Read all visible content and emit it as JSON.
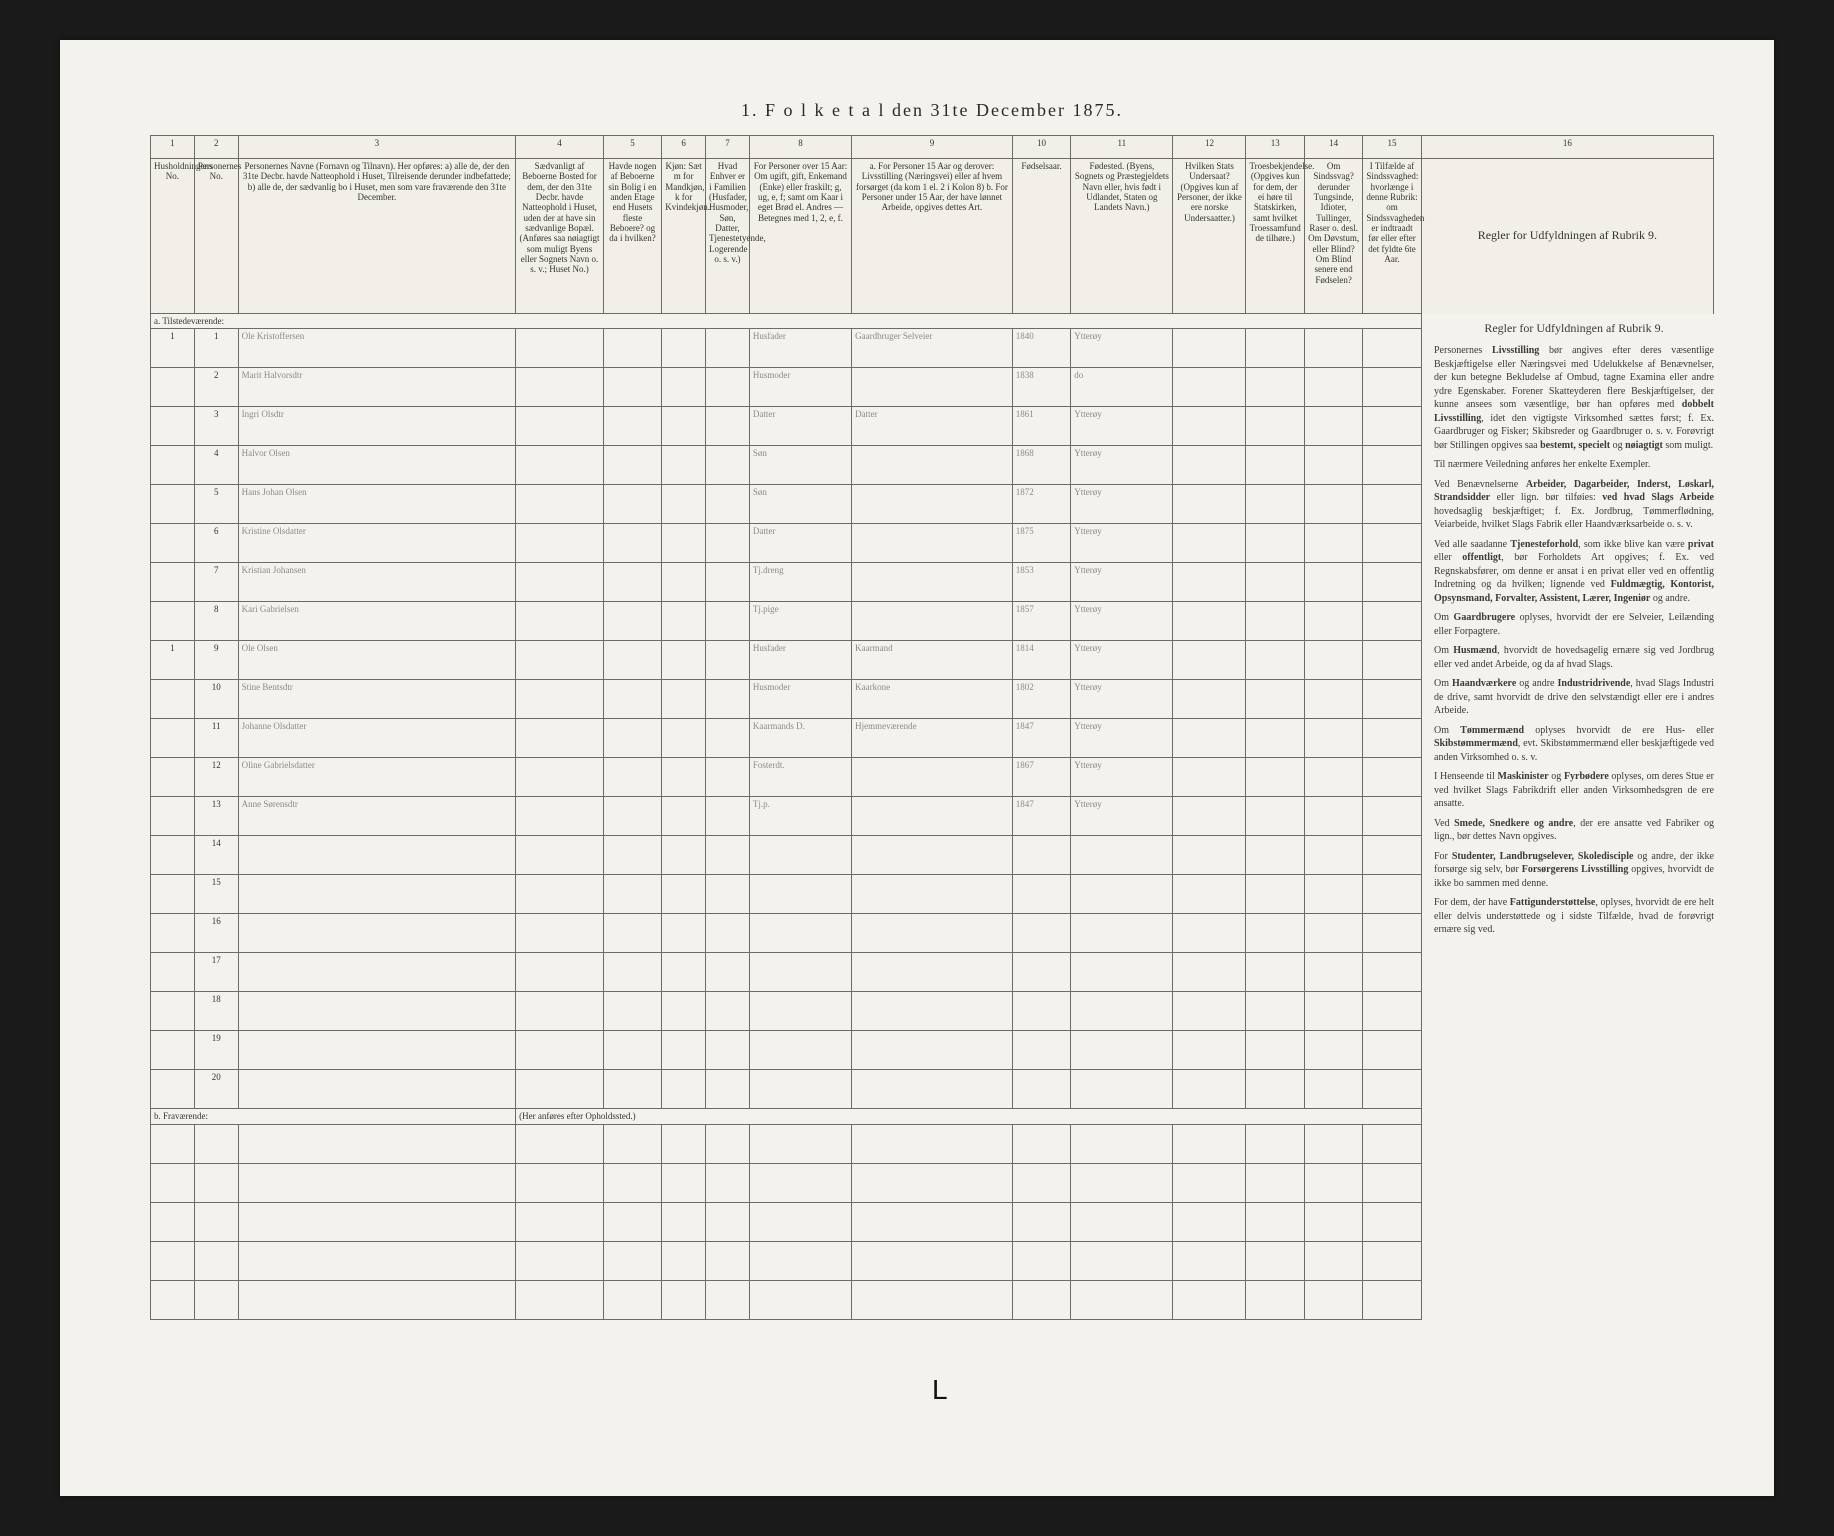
{
  "title": "1.  F o l k e t a l   den 31te December 1875.",
  "columns_numbers": [
    "1",
    "2",
    "3",
    "4",
    "5",
    "6",
    "7",
    "8",
    "9",
    "10",
    "11",
    "12",
    "13",
    "14",
    "15",
    "16"
  ],
  "headers": [
    "Husholdningens No.",
    "Personernes No.",
    "Personernes Navne (Fornavn og Tilnavn). Her opføres: a) alle de, der den 31te Decbr. havde Natteophold i Huset, Tilreisende derunder indbefattede; b) alle de, der sædvanlig bo i Huset, men som vare fraværende den 31te December.",
    "Sædvanligt af Beboerne Bosted for dem, der den 31te Decbr. havde Natteophold i Huset, uden der at have sin sædvanlige Bopæl. (Anføres saa nøiagtigt som muligt Byens eller Sognets Navn o. s. v.; Huset No.)",
    "Havde nogen af Beboerne sin Bolig i en anden Etage end Husets fleste Beboere? og da i hvilken?",
    "Kjøn: Sæt m for Mandkjøn, k for Kvindekjøn.",
    "Hvad Enhver er i Familien (Husfader, Husmoder, Søn, Datter, Tjenestetyende, Logerende o. s. v.)",
    "For Personer over 15 Aar: Om ugift, gift, Enkemand (Enke) eller fraskilt; g, ug, e, f; samt om Kaar i eget Brød el. Andres — Betegnes med 1, 2, e, f.",
    "a. For Personer 15 Aar og derover: Livsstilling (Næringsvei) eller af hvem forsørget (da kom 1 el. 2 i Kolon 8) b. For Personer under 15 Aar, der have lønnet Arbeide, opgives dettes Art.",
    "Fødselsaar.",
    "Fødested. (Byens, Sognets og Præstegjeldets Navn eller, hvis født i Udlandet, Staten og Landets Navn.)",
    "Hvilken Stats Undersaat? (Opgives kun af Personer, der ikke ere norske Undersaatter.)",
    "Troesbekjendelse. (Opgives kun for dem, der ei høre til Statskirken, samt hvilket Troessamfund de tilhøre.)",
    "Om Sindssvag? derunder Tungsinde, Idioter, Tullinger, Raser o. desl. Om Døvstum, eller Blind? Om Blind senere end Fødselen?",
    "I Tilfælde af Sindssvaghed: hvorlænge i denne Rubrik: om Sindssvagheden er indtraadt før eller efter det fyldte 6te Aar.",
    "Regler for Udfyldningen af Rubrik 9."
  ],
  "section_a": "a. Tilstedeværende:",
  "section_b": "b. Fraværende:",
  "section_b_sub": "(Her anføres efter Opholdssted.)",
  "rows": [
    {
      "n": "1",
      "hh": "1",
      "name": "Ole Kristoffersen",
      "col7": "Husfader",
      "col8": "g",
      "col9": "Gaardbruger Selveier",
      "year": "1840",
      "place": "Ytterøy"
    },
    {
      "n": "2",
      "hh": "",
      "name": "Marit Halvorsdtr",
      "col7": "Husmoder",
      "col8": "g",
      "col9": "",
      "year": "1838",
      "place": "do"
    },
    {
      "n": "3",
      "hh": "",
      "name": "Ingri Olsdtr",
      "col7": "Datter",
      "col8": "",
      "col9": "Datter",
      "year": "1861",
      "place": "Ytterøy"
    },
    {
      "n": "4",
      "hh": "",
      "name": "Halvor Olsen",
      "col7": "Søn",
      "col8": "",
      "col9": "",
      "year": "1868",
      "place": "Ytterøy"
    },
    {
      "n": "5",
      "hh": "",
      "name": "Hans Johan Olsen",
      "col7": "Søn",
      "col8": "",
      "col9": "",
      "year": "1872",
      "place": "Ytterøy"
    },
    {
      "n": "6",
      "hh": "",
      "name": "Kristine Olsdatter",
      "col7": "Datter",
      "col8": "",
      "col9": "",
      "year": "1875",
      "place": "Ytterøy"
    },
    {
      "n": "7",
      "hh": "",
      "name": "Kristian Johansen",
      "col7": "Tj.dreng",
      "col8": "",
      "col9": "",
      "year": "1853",
      "place": "Ytterøy"
    },
    {
      "n": "8",
      "hh": "",
      "name": "Kari Gabrielsen",
      "col7": "Tj.pige",
      "col8": "",
      "col9": "",
      "year": "1857",
      "place": "Ytterøy"
    },
    {
      "n": "9",
      "hh": "1",
      "name": "Ole Olsen",
      "col7": "Husfader",
      "col8": "g",
      "col9": "Kaarmand",
      "year": "1814",
      "place": "Ytterøy"
    },
    {
      "n": "10",
      "hh": "",
      "name": "Stine Bentsdtr",
      "col7": "Husmoder",
      "col8": "g",
      "col9": "Kaarkone",
      "year": "1802",
      "place": "Ytterøy"
    },
    {
      "n": "11",
      "hh": "",
      "name": "Johanne Olsdatter",
      "col7": "Kaarmands D.",
      "col8": "",
      "col9": "Hjemmeværende",
      "year": "1847",
      "place": "Ytterøy"
    },
    {
      "n": "12",
      "hh": "",
      "name": "Oline Gabrielsdatter",
      "col7": "Fosterdt.",
      "col8": "",
      "col9": "",
      "year": "1867",
      "place": "Ytterøy"
    },
    {
      "n": "13",
      "hh": "",
      "name": "Anne Sørensdtr",
      "col7": "Tj.p.",
      "col8": "",
      "col9": "",
      "year": "1847",
      "place": "Ytterøy"
    }
  ],
  "empty_rows_after": [
    "14",
    "15",
    "16",
    "17",
    "18",
    "19",
    "20"
  ],
  "instructions": {
    "heading": "Regler for Udfyldningen af Rubrik 9.",
    "paragraphs": [
      "Personernes <b>Livsstilling</b> bør angives efter deres væsentlige Beskjæftigelse eller Næringsvei med Udelukkelse af Benævnelser, der kun betegne Bekludelse af Ombud, tagne Examina eller andre ydre Egenskaber. Forener Skatteyderen flere Beskjæftigelser, der kunne ansees som væsentlige, bør han opføres med <b>dobbelt Livsstilling</b>, idet den vigtigste Virksomhed sættes først; f. Ex. Gaardbruger og Fisker; Skibsreder og Gaardbruger o. s. v. Forøvrigt bør Stillingen opgives saa <b>bestemt, specielt</b> og <b>nøiagtigt</b> som muligt.",
      "Til nærmere Veiledning anføres her enkelte Exempler.",
      "Ved Benævnelserne <b>Arbeider, Dagarbeider, Inderst, Løskarl, Strandsidder</b> eller lign. bør tilføies: <b>ved hvad Slags Arbeide</b> hovedsaglig beskjæftiget; f. Ex. Jordbrug, Tømmerflødning, Veiarbeide, hvilket Slags Fabrik eller Haandværksarbeide o. s. v.",
      "Ved alle saadanne <b>Tjenesteforhold</b>, som ikke blive kan være <b>privat</b> eller <b>offentligt</b>, bør Forholdets Art opgives; f. Ex. ved Regnskabsfører, om denne er ansat i en privat eller ved en offentlig Indretning og da hvilken; lignende ved <b>Fuldmægtig, Kontorist, Opsynsmand, Forvalter, Assistent, Lærer, Ingeniør</b> og andre.",
      "Om <b>Gaardbrugere</b> oplyses, hvorvidt der ere Selveier, Leilænding eller Forpagtere.",
      "Om <b>Husmænd</b>, hvorvidt de hovedsagelig ernære sig ved Jordbrug eller ved andet Arbeide, og da af hvad Slags.",
      "Om <b>Haandværkere</b> og andre <b>Industridrivende</b>, hvad Slags Industri de drive, samt hvorvidt de drive den selvstændigt eller ere i andres Arbeide.",
      "Om <b>Tømmermænd</b> oplyses hvorvidt de ere Hus- eller <b>Skibstømmermænd</b>, evt. Skibstømmermænd eller beskjæftigede ved anden Virksomhed o. s. v.",
      "I Henseende til <b>Maskinister</b> og <b>Fyrbødere</b> oplyses, om deres Stue er ved hvilket Slags Fabrikdrift eller anden Virksomhedsgren de ere ansatte.",
      "Ved <b>Smede, Snedkere og andre</b>, der ere ansatte ved Fabriker og lign., bør dettes Navn opgives.",
      "For <b>Studenter, Landbrugselever, Skoledisciple</b> og andre, der ikke forsørge sig selv, bør <b>Forsørgerens Livsstilling</b> opgives, hvorvidt de ikke bo sammen med denne.",
      "For dem, der have <b>Fattigunderstøttelse</b>, oplyses, hvorvidt de ere helt eller delvis understøttede og i sidste Tilfælde, hvad de forøvrigt ernære sig ved."
    ]
  },
  "styling": {
    "paper_bg": "#f4f2ec",
    "frame_bg": "#1a1a1a",
    "border_color": "#6b6b6b",
    "handwriting_color": "#5a5a5a",
    "text_color": "#333333"
  }
}
